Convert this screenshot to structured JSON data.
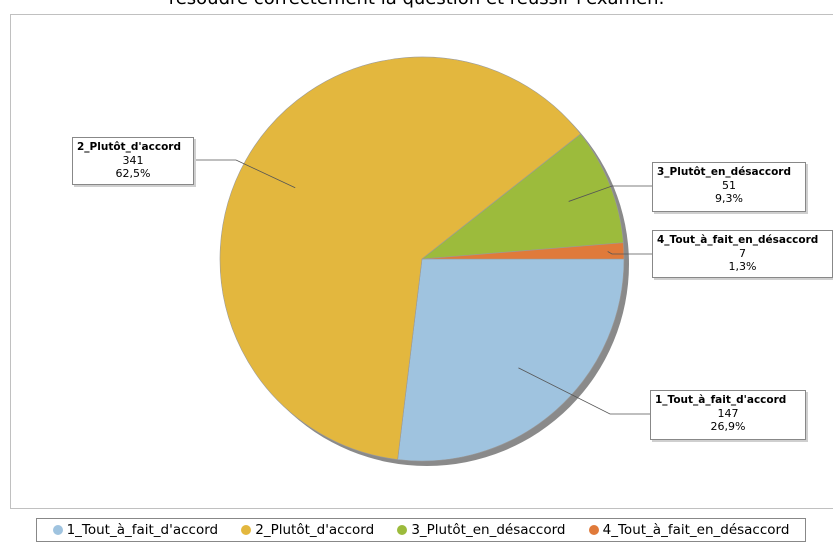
{
  "chart_data": {
    "type": "pie",
    "title": "résoudre correctement la question et réussir l'examen.",
    "categories": [
      "1_Tout_à_fait_d'accord",
      "2_Plutôt_d'accord",
      "3_Plutôt_en_désaccord",
      "4_Tout_à_fait_en_désaccord"
    ],
    "values": [
      147,
      341,
      51,
      7
    ],
    "percent_labels": [
      "26,9%",
      "62,5%",
      "9,3%",
      "1,3%"
    ],
    "colors": [
      "#9fc3df",
      "#e3b73e",
      "#9cbb3c",
      "#e07a3a"
    ],
    "legend_position": "bottom",
    "start_angle_deg": 0,
    "direction": "clockwise"
  },
  "data_labels": [
    {
      "name": "1_Tout_à_fait_d'accord",
      "count": "147",
      "percent": "26,9%"
    },
    {
      "name": "2_Plutôt_d'accord",
      "count": "341",
      "percent": "62,5%"
    },
    {
      "name": "3_Plutôt_en_désaccord",
      "count": "51",
      "percent": "9,3%"
    },
    {
      "name": "4_Tout_à_fait_en_désaccord",
      "count": "7",
      "percent": "1,3%"
    }
  ],
  "legend": {
    "items": [
      "1_Tout_à_fait_d'accord",
      "2_Plutôt_d'accord",
      "3_Plutôt_en_désaccord",
      "4_Tout_à_fait_en_désaccord"
    ]
  }
}
